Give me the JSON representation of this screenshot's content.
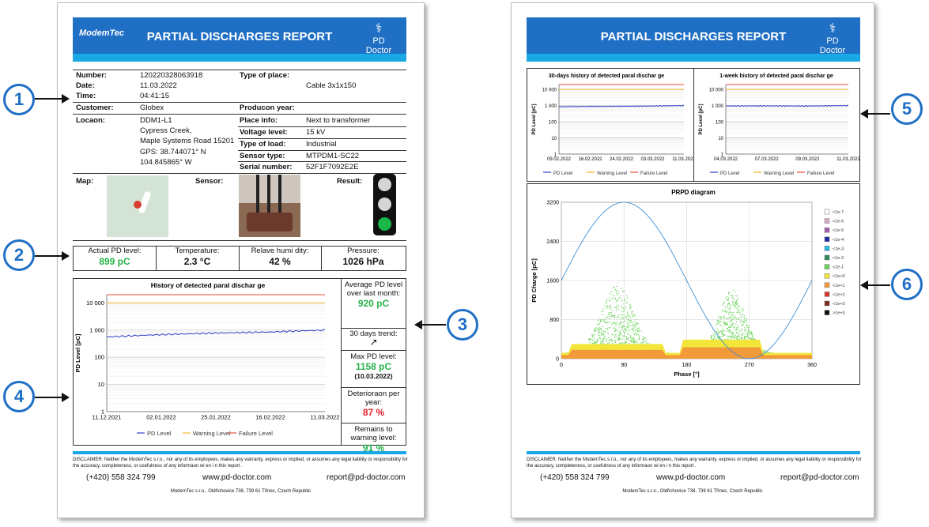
{
  "page1": {
    "logo": "ModemTec",
    "title": "PARTIAL DISCHARGES REPORT",
    "brand": "PD Doctor",
    "info": {
      "number_label": "Number:",
      "number": "120220328063918",
      "date_label": "Date:",
      "date": "11.03.2022",
      "time_label": "Time:",
      "time": "04:41:15",
      "customer_label": "Customer:",
      "customer": "Globex",
      "location_label": "Locaon:",
      "location_lines": [
        "DDM1-L1",
        "Cypress Creek,",
        "Maple Systems Road 15201",
        "GPS: 38.744071° N",
        "104.845865° W"
      ],
      "type_place_label": "Type of place:",
      "type_place": "Cable 3x1x150",
      "production_year_label": "Producon year:",
      "place_info_label": "Place info:",
      "place_info": "Next to transformer",
      "voltage_label": "Voltage level:",
      "voltage": "15 kV",
      "load_label": "Type of load:",
      "load": "Industrial",
      "sensor_type_label": "Sensor type:",
      "sensor_type": "MTPDM1-SC22",
      "serial_label": "Serial number:",
      "serial": "52F1F7092E2E"
    },
    "map_label": "Map:",
    "sensor_label": "Sensor:",
    "result_label": "Result:",
    "metrics": [
      {
        "label": "Actual PD level:",
        "value": "899 pC",
        "color": "#27b34a"
      },
      {
        "label": "Temperature:",
        "value": "2.3 °C",
        "color": "#111111"
      },
      {
        "label": "Relave humi dity:",
        "value": "42 %",
        "color": "#111111"
      },
      {
        "label": "Pressure:",
        "value": "1026 hPa",
        "color": "#111111"
      }
    ],
    "history_title": "History of detected paral dischar ge",
    "side": {
      "avg_label": "Average PD level over last month:",
      "avg_value": "920 pC",
      "trend_label": "30 days trend:",
      "trend_icon": "↗",
      "max_label": "Max PD level:",
      "max_value": "1158 pC",
      "max_date": "(10.03.2022)",
      "det_label": "Deterioraon per year:",
      "det_value": "87 %",
      "remain_label": "Remains to warning level:",
      "remain_value": "91 %"
    },
    "disclaimer": "DISCLAIMER: Neither the ModemTec s.r.o., nor any of its employees, makes any warranty, express or implied, or assumes any legal liability or responsibility for the accuracy, completeness, or usefulness of any informaon wi en i n this report .",
    "phone": "(+420) 558 324 799",
    "web": "www.pd-doctor.com",
    "email": "report@pd-doctor.com",
    "address": "ModemTec s.r.o., Oldřichovice 738, 739 61 Třinec, Czech Republic"
  },
  "page2": {
    "title": "PARTIAL DISCHARGES REPORT",
    "brand": "PD Doctor",
    "chart30_title": "30-days history of detected paral dischar ge",
    "chart7_title": "1-week history of detected paral dischar ge",
    "prpd_title": "PRPD diagram",
    "disclaimer": "DISCLAIMER: Neither the ModemTec s.r.o., nor any of its employees, makes any warranty, express or implied, or assumes any legal liability or responsibility for the accuracy, completeness, or usefulness of any informaon wi en i n this report .",
    "phone": "(+420) 558 324 799",
    "web": "www.pd-doctor.com",
    "email": "report@pd-doctor.com",
    "address": "ModemTec s.r.o., Oldřichovice 738, 739 61 Třinec, Czech Republic"
  },
  "markers": [
    "1",
    "2",
    "3",
    "4",
    "5",
    "6"
  ],
  "colors": {
    "pd_level": "#2f3fc8",
    "warning": "#f0b429",
    "failure": "#e84c3d",
    "traffic_green": "#19b84a"
  },
  "chart_data": [
    {
      "type": "line",
      "title": "History of detected paral dischar ge",
      "ylabel": "PD Level [pC]",
      "yscale": "log",
      "ylim": [
        1,
        20000
      ],
      "yticks": [
        "1",
        "10",
        "100",
        "1 000",
        "10 000"
      ],
      "xticks": [
        "11.12.2021",
        "02.01.2022",
        "25.01.2022",
        "16.02.2022",
        "11.03.2022"
      ],
      "legend": [
        "PD Level",
        "Warning Level",
        "Failure Level"
      ],
      "series": [
        {
          "name": "PD Level",
          "x": [
            "11.12.2021",
            "02.01.2022",
            "25.01.2022",
            "16.02.2022",
            "11.03.2022"
          ],
          "values": [
            560,
            680,
            780,
            850,
            1000
          ]
        },
        {
          "name": "Warning Level",
          "values": [
            10000,
            10000
          ]
        },
        {
          "name": "Failure Level",
          "values": [
            20000,
            20000
          ]
        }
      ]
    },
    {
      "type": "line",
      "title": "30-days history of detected paral dischar ge",
      "ylabel": "PD Level [pC]",
      "yscale": "log",
      "ylim": [
        1,
        20000
      ],
      "yticks": [
        "1",
        "10",
        "100",
        "1 000",
        "10 000"
      ],
      "xticks": [
        "09.02.2022",
        "16.02.2022",
        "24.02.2022",
        "03.03.2022",
        "11.03.2022"
      ],
      "legend": [
        "PD Level",
        "Warning Level",
        "Failure Level"
      ],
      "series": [
        {
          "name": "PD Level",
          "values": [
            850,
            880,
            900,
            940,
            1000
          ]
        },
        {
          "name": "Warning Level",
          "values": [
            10000,
            10000
          ]
        },
        {
          "name": "Failure Level",
          "values": [
            20000,
            20000
          ]
        }
      ]
    },
    {
      "type": "line",
      "title": "1-week history of detected paral dischar ge",
      "ylabel": "PD Level [pC]",
      "yscale": "log",
      "ylim": [
        1,
        20000
      ],
      "yticks": [
        "1",
        "10",
        "100",
        "1 000",
        "10 000"
      ],
      "xticks": [
        "04.03.2022",
        "07.03.2022",
        "09.03.2022",
        "11.03.2022"
      ],
      "legend": [
        "PD Level",
        "Warning Level",
        "Failure Level"
      ],
      "series": [
        {
          "name": "PD Level",
          "values": [
            950,
            960,
            940,
            1000
          ]
        },
        {
          "name": "Warning Level",
          "values": [
            10000,
            10000
          ]
        },
        {
          "name": "Failure Level",
          "values": [
            20000,
            20000
          ]
        }
      ]
    },
    {
      "type": "scatter",
      "title": "PRPD diagram",
      "xlabel": "Phase [°]",
      "ylabel": "PD Charge [pC]",
      "xlim": [
        0,
        360
      ],
      "ylim": [
        0,
        3200
      ],
      "xticks": [
        "0",
        "90",
        "180",
        "270",
        "360"
      ],
      "yticks": [
        "0",
        "800",
        "1600",
        "2400",
        "3200"
      ],
      "legend": [
        "<1e-7",
        "<1e-6",
        "<1e-5",
        "<1e-4",
        "<1e-3",
        "<1e-2",
        "<1e-1",
        "<1e+0",
        "<1e+1",
        "<1e+2",
        "<1e+3",
        ">1e+3"
      ],
      "legend_colors": [
        "#ffffff",
        "#d9a7c7",
        "#a45fb0",
        "#1f2aa0",
        "#27b8e0",
        "#2e8b57",
        "#6cd45a",
        "#f2e63a",
        "#f29a3a",
        "#d8362a",
        "#7a2a1a",
        "#111111"
      ],
      "clusters": [
        {
          "phase_center": 80,
          "phase_spread": 55,
          "max_charge": 1400,
          "color": "#6cd45a"
        },
        {
          "phase_center": 245,
          "phase_spread": 45,
          "max_charge": 1300,
          "color": "#6cd45a"
        }
      ],
      "band": {
        "yellow": 300,
        "orange": 180
      },
      "reference_sine_amplitude": 1600
    }
  ]
}
